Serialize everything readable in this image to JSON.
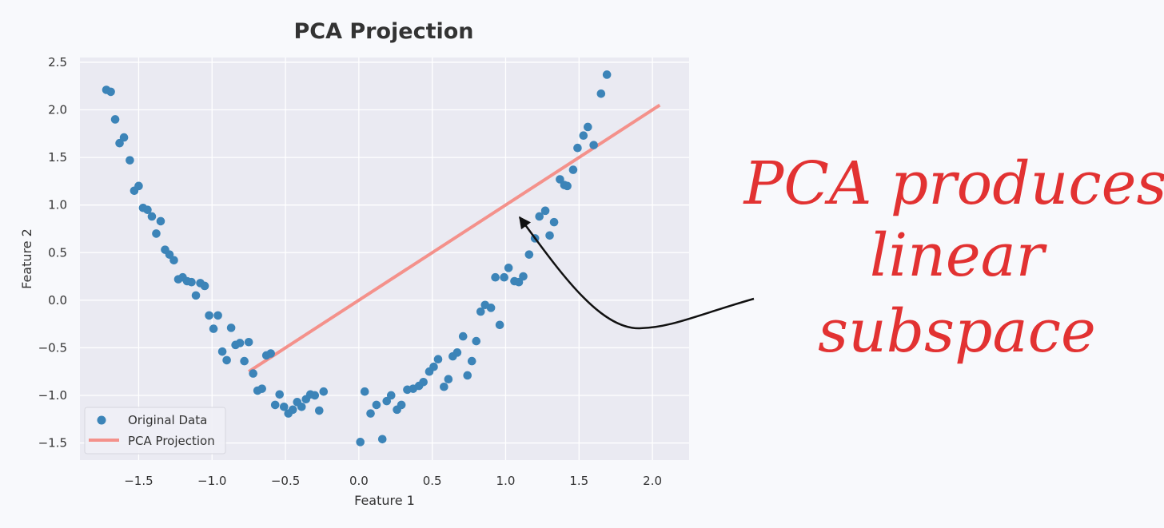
{
  "chart_data": {
    "type": "scatter",
    "title": "PCA Projection",
    "xlabel": "Feature 1",
    "ylabel": "Feature 2",
    "xlim": [
      -1.9,
      2.25
    ],
    "ylim": [
      -1.68,
      2.55
    ],
    "xticks": [
      -1.5,
      -1.0,
      -0.5,
      0.0,
      0.5,
      1.0,
      1.5,
      2.0
    ],
    "yticks": [
      -1.5,
      -1.0,
      -0.5,
      0.0,
      0.5,
      1.0,
      1.5,
      2.0,
      2.5
    ],
    "grid": true,
    "legend_position": "lower-left",
    "series": [
      {
        "name": "Original Data",
        "kind": "scatter",
        "color": "#3c84b8",
        "points": [
          [
            -1.72,
            2.21
          ],
          [
            -1.69,
            2.19
          ],
          [
            -1.66,
            1.9
          ],
          [
            -1.63,
            1.65
          ],
          [
            -1.6,
            1.71
          ],
          [
            -1.56,
            1.47
          ],
          [
            -1.53,
            1.15
          ],
          [
            -1.5,
            1.2
          ],
          [
            -1.47,
            0.97
          ],
          [
            -1.44,
            0.95
          ],
          [
            -1.41,
            0.88
          ],
          [
            -1.38,
            0.7
          ],
          [
            -1.35,
            0.83
          ],
          [
            -1.32,
            0.53
          ],
          [
            -1.29,
            0.48
          ],
          [
            -1.26,
            0.42
          ],
          [
            -1.23,
            0.22
          ],
          [
            -1.2,
            0.24
          ],
          [
            -1.17,
            0.2
          ],
          [
            -1.14,
            0.19
          ],
          [
            -1.11,
            0.05
          ],
          [
            -1.08,
            0.18
          ],
          [
            -1.05,
            0.15
          ],
          [
            -1.02,
            -0.16
          ],
          [
            -0.99,
            -0.3
          ],
          [
            -0.96,
            -0.16
          ],
          [
            -0.93,
            -0.54
          ],
          [
            -0.9,
            -0.63
          ],
          [
            -0.87,
            -0.29
          ],
          [
            -0.84,
            -0.47
          ],
          [
            -0.81,
            -0.45
          ],
          [
            -0.78,
            -0.64
          ],
          [
            -0.75,
            -0.44
          ],
          [
            -0.72,
            -0.77
          ],
          [
            -0.69,
            -0.95
          ],
          [
            -0.66,
            -0.93
          ],
          [
            -0.63,
            -0.58
          ],
          [
            -0.6,
            -0.56
          ],
          [
            -0.57,
            -1.1
          ],
          [
            -0.54,
            -0.99
          ],
          [
            -0.51,
            -1.12
          ],
          [
            -0.48,
            -1.19
          ],
          [
            -0.45,
            -1.15
          ],
          [
            -0.42,
            -1.07
          ],
          [
            -0.39,
            -1.12
          ],
          [
            -0.36,
            -1.04
          ],
          [
            -0.33,
            -0.99
          ],
          [
            -0.3,
            -1.0
          ],
          [
            -0.27,
            -1.16
          ],
          [
            -0.24,
            -0.96
          ],
          [
            0.01,
            -1.49
          ],
          [
            0.04,
            -0.96
          ],
          [
            0.08,
            -1.19
          ],
          [
            0.12,
            -1.1
          ],
          [
            0.16,
            -1.46
          ],
          [
            0.19,
            -1.06
          ],
          [
            0.22,
            -1.0
          ],
          [
            0.26,
            -1.15
          ],
          [
            0.29,
            -1.1
          ],
          [
            0.33,
            -0.94
          ],
          [
            0.37,
            -0.93
          ],
          [
            0.41,
            -0.9
          ],
          [
            0.44,
            -0.86
          ],
          [
            0.48,
            -0.75
          ],
          [
            0.51,
            -0.7
          ],
          [
            0.54,
            -0.62
          ],
          [
            0.58,
            -0.91
          ],
          [
            0.61,
            -0.83
          ],
          [
            0.64,
            -0.59
          ],
          [
            0.67,
            -0.55
          ],
          [
            0.71,
            -0.38
          ],
          [
            0.74,
            -0.79
          ],
          [
            0.77,
            -0.64
          ],
          [
            0.8,
            -0.43
          ],
          [
            0.83,
            -0.12
          ],
          [
            0.86,
            -0.05
          ],
          [
            0.9,
            -0.08
          ],
          [
            0.93,
            0.24
          ],
          [
            0.96,
            -0.26
          ],
          [
            0.99,
            0.24
          ],
          [
            1.02,
            0.34
          ],
          [
            1.06,
            0.2
          ],
          [
            1.09,
            0.19
          ],
          [
            1.12,
            0.25
          ],
          [
            1.16,
            0.48
          ],
          [
            1.2,
            0.65
          ],
          [
            1.23,
            0.88
          ],
          [
            1.27,
            0.94
          ],
          [
            1.3,
            0.68
          ],
          [
            1.33,
            0.82
          ],
          [
            1.37,
            1.27
          ],
          [
            1.4,
            1.21
          ],
          [
            1.42,
            1.2
          ],
          [
            1.46,
            1.37
          ],
          [
            1.49,
            1.6
          ],
          [
            1.53,
            1.73
          ],
          [
            1.56,
            1.82
          ],
          [
            1.6,
            1.63
          ],
          [
            1.65,
            2.17
          ],
          [
            1.69,
            2.37
          ]
        ]
      },
      {
        "name": "PCA Projection",
        "kind": "line",
        "color": "#f4918b",
        "points": [
          [
            -0.75,
            -0.75
          ],
          [
            2.05,
            2.05
          ]
        ]
      }
    ]
  },
  "annotation": {
    "lines": [
      "PCA produces",
      "linear",
      "subspace"
    ],
    "color": "#e23232"
  }
}
